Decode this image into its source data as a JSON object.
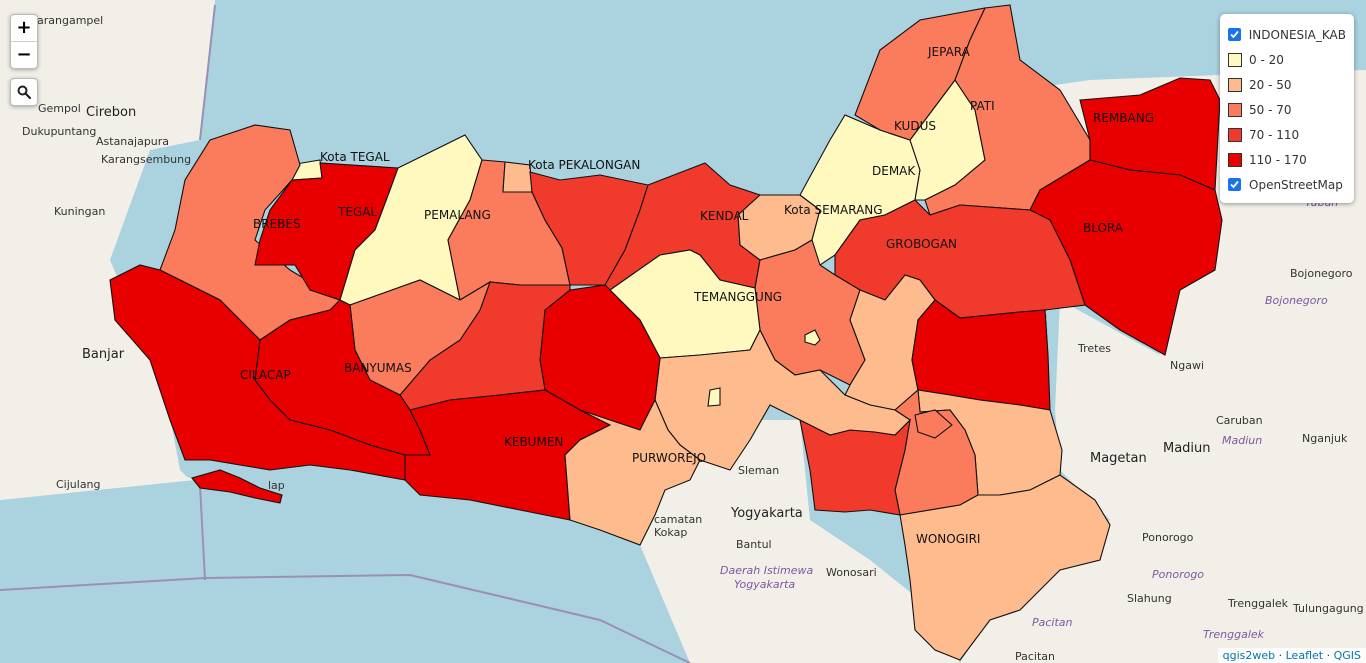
{
  "map": {
    "layers": {
      "indonesia_kab": "INDONESIA_KAB",
      "osm": "OpenStreetMap"
    },
    "legend_classes": [
      {
        "label": "0 - 20",
        "color": "#fff9c0"
      },
      {
        "label": "20 - 50",
        "color": "#fdbb8e"
      },
      {
        "label": "50 - 70",
        "color": "#fb7c5c"
      },
      {
        "label": "70 - 110",
        "color": "#f03b2c"
      },
      {
        "label": "110 - 170",
        "color": "#e80000"
      }
    ],
    "regions": {
      "kota_tegal": "Kota TEGAL",
      "kota_pekalongan": "Kota PEKALONGAN",
      "brebes": "BREBES",
      "tegal": "TEGAL",
      "pemalang": "PEMALANG",
      "kendal": "KENDAL",
      "kota_semarang": "Kota SEMARANG",
      "demak": "DEMAK",
      "kudus": "KUDUS",
      "jepara": "JEPARA",
      "pati": "PATI",
      "rembang": "REMBANG",
      "blora": "BLORA",
      "grobogan": "GROBOGAN",
      "temanggung": "TEMANGGUNG",
      "banyumas": "BANYUMAS",
      "cilacap": "CILACAP",
      "kebumen": "KEBUMEN",
      "purworejo": "PURWOREJO",
      "wonogiri": "WONOGIRI"
    },
    "places": {
      "karangampel": "Karangampel",
      "cirebon": "Cirebon",
      "gempol": "Gempol",
      "dukupuntang": "Dukupuntang",
      "astanajapura": "Astanajapura",
      "karangsembung": "Karangsembung",
      "kuningan": "Kuningan",
      "banjar": "Banjar",
      "cijulang": "Cijulang",
      "magetan": "Magetan",
      "madiun": "Madiun",
      "madiun_region": "Madiun",
      "ngawi": "Ngawi",
      "caruban": "Caruban",
      "nganjuk": "Nganjuk",
      "bojonegoro": "Bojonegoro",
      "bojonegoro_region": "Bojonegoro",
      "tretes": "Tretes",
      "tuban": "Tuban",
      "ponorogo": "Ponorogo",
      "ponorogo_region": "Ponorogo",
      "trenggalek": "Trenggalek",
      "trenggalek_region": "Trenggalek",
      "tulungagung": "Tulungagung",
      "slahung": "Slahung",
      "pacitan": "Pacitan",
      "pacitan_region": "Pacitan",
      "yogyakarta": "Yogyakarta",
      "bantul": "Bantul",
      "wonosari": "Wonosari",
      "sleman": "Sleman",
      "diy_1": "Daerah Istimewa",
      "diy_2": "Yogyakarta",
      "kokap_1": "camatan",
      "kokap_2": "Kokap",
      "cilacap_town": "lap"
    },
    "attribution": {
      "qgis2web": "qgis2web",
      "sep1": "·",
      "leaflet": "Leaflet",
      "sep2": "·",
      "qgis": "QGIS"
    },
    "controls": {
      "zoom_in": "+",
      "zoom_out": "−"
    },
    "icons": [
      "search-icon",
      "checkbox-checked-icon"
    ]
  }
}
